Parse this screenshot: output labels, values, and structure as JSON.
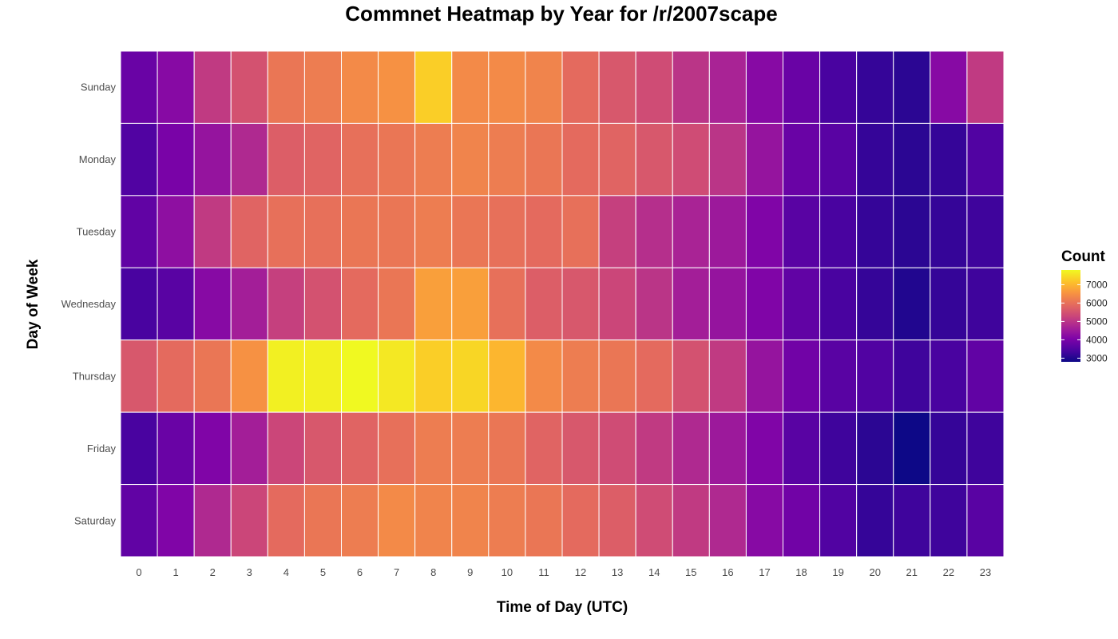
{
  "chart_data": {
    "type": "heatmap",
    "title": "Commnet Heatmap by Year for /r/2007scape",
    "xlabel": "Time of Day (UTC)",
    "ylabel": "Day of Week",
    "x": [
      "0",
      "1",
      "2",
      "3",
      "4",
      "5",
      "6",
      "7",
      "8",
      "9",
      "10",
      "11",
      "12",
      "13",
      "14",
      "15",
      "16",
      "17",
      "18",
      "19",
      "20",
      "21",
      "22",
      "23"
    ],
    "y": [
      "Sunday",
      "Monday",
      "Tuesday",
      "Wednesday",
      "Thursday",
      "Friday",
      "Saturday"
    ],
    "values": [
      [
        3800,
        4200,
        5100,
        5500,
        6100,
        6200,
        6400,
        6500,
        7300,
        6400,
        6400,
        6300,
        5900,
        5600,
        5400,
        5000,
        4700,
        4200,
        3800,
        3400,
        3200,
        3100,
        4200,
        5100
      ],
      [
        3500,
        4000,
        4400,
        4800,
        5700,
        5800,
        6000,
        6100,
        6200,
        6300,
        6200,
        6100,
        5900,
        5800,
        5600,
        5400,
        5000,
        4400,
        3800,
        3600,
        3200,
        3100,
        3200,
        3500
      ],
      [
        3700,
        4300,
        5100,
        5800,
        6000,
        6000,
        6100,
        6100,
        6200,
        6100,
        6000,
        5900,
        6000,
        5200,
        4900,
        4700,
        4500,
        4100,
        3600,
        3400,
        3200,
        3100,
        3200,
        3300
      ],
      [
        3400,
        3600,
        4200,
        4600,
        5200,
        5500,
        5900,
        6100,
        6700,
        6700,
        6000,
        5700,
        5600,
        5300,
        5000,
        4600,
        4400,
        4100,
        3700,
        3400,
        3200,
        3000,
        3200,
        3300
      ],
      [
        5600,
        5900,
        6100,
        6500,
        7700,
        7700,
        7800,
        7600,
        7300,
        7400,
        7000,
        6400,
        6200,
        6100,
        5900,
        5500,
        5100,
        4400,
        3900,
        3600,
        3500,
        3300,
        3400,
        3700
      ],
      [
        3400,
        3800,
        4100,
        4600,
        5300,
        5600,
        5800,
        6000,
        6200,
        6200,
        6100,
        5800,
        5600,
        5400,
        5100,
        4800,
        4500,
        4100,
        3600,
        3300,
        3100,
        2800,
        3200,
        3300
      ],
      [
        3700,
        4100,
        4800,
        5300,
        5900,
        6100,
        6200,
        6400,
        6300,
        6300,
        6200,
        6100,
        5900,
        5700,
        5400,
        5100,
        4800,
        4200,
        3900,
        3500,
        3200,
        3300,
        3300,
        3600
      ]
    ],
    "legend": {
      "title": "Count",
      "ticks": [
        3000,
        4000,
        5000,
        6000,
        7000
      ],
      "range": [
        2800,
        7800
      ],
      "placement": "right"
    },
    "colormap": "plasma",
    "grid": false
  }
}
